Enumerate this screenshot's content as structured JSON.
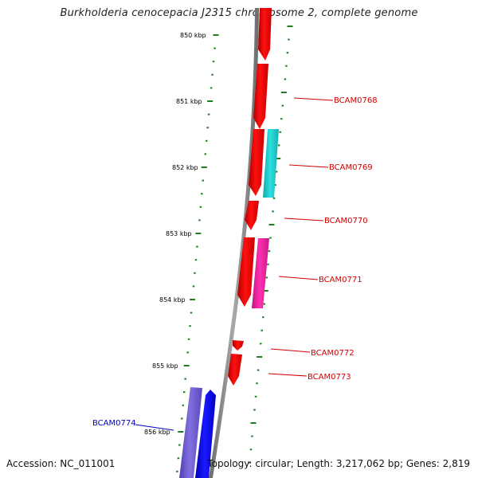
{
  "title": "Burkholderia cenocepacia J2315 chromosome 2, complete genome",
  "footer": {
    "accession": "Accession: NC_011001",
    "topology": "Topology: circular; Length: 3,217,062 bp; Genes: 2,819"
  },
  "colors": {
    "backbone": "#808080",
    "ruler": "#1e7d1e",
    "forward_gene": "#ff0000",
    "label_red": "#d00000",
    "label_blue": "#0000c0",
    "teal_gene": "#20c8c8",
    "pink_gene": "#f020a0",
    "blue_gene": "#0000ff",
    "purple_gene": "#7060d0"
  },
  "ruler_labels": [
    "850 kbp",
    "851 kbp",
    "852 kbp",
    "853 kbp",
    "854 kbp",
    "855 kbp",
    "856 kbp"
  ],
  "gene_labels": [
    {
      "text": "BCAM0768",
      "color": "#d00000"
    },
    {
      "text": "BCAM0769",
      "color": "#d00000"
    },
    {
      "text": "BCAM0770",
      "color": "#d00000"
    },
    {
      "text": "BCAM0771",
      "color": "#d00000"
    },
    {
      "text": "BCAM0772",
      "color": "#d00000"
    },
    {
      "text": "BCAM0773",
      "color": "#d00000"
    },
    {
      "text": "BCAM0774",
      "color": "#0000c0"
    }
  ]
}
